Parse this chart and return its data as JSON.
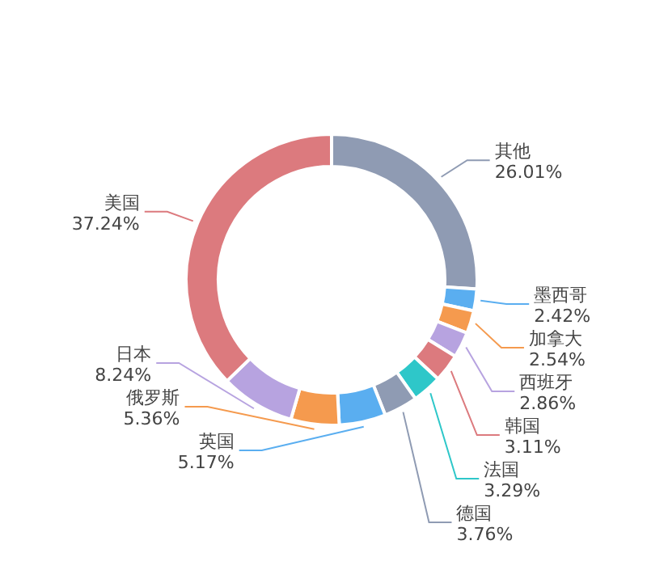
{
  "chart_data": {
    "type": "donut",
    "categories": [
      "其他",
      "墨西哥",
      "加拿大",
      "西班牙",
      "韩国",
      "法国",
      "德国",
      "英国",
      "俄罗斯",
      "日本",
      "美国"
    ],
    "values": [
      26.01,
      2.42,
      2.54,
      2.86,
      3.11,
      3.29,
      3.76,
      5.17,
      5.36,
      8.24,
      37.24
    ],
    "value_labels": [
      "26.01%",
      "2.42%",
      "2.54%",
      "2.86%",
      "3.11%",
      "3.29%",
      "3.76%",
      "5.17%",
      "5.36%",
      "8.24%",
      "37.24%"
    ],
    "colors": [
      "#8f9bb3",
      "#5aaef0",
      "#f59a4e",
      "#b7a3e0",
      "#dc7a7e",
      "#2ec7c9",
      "#8f9bb3",
      "#5aaef0",
      "#f59a4e",
      "#b7a3e0",
      "#dc7a7e"
    ],
    "legend": false
  }
}
